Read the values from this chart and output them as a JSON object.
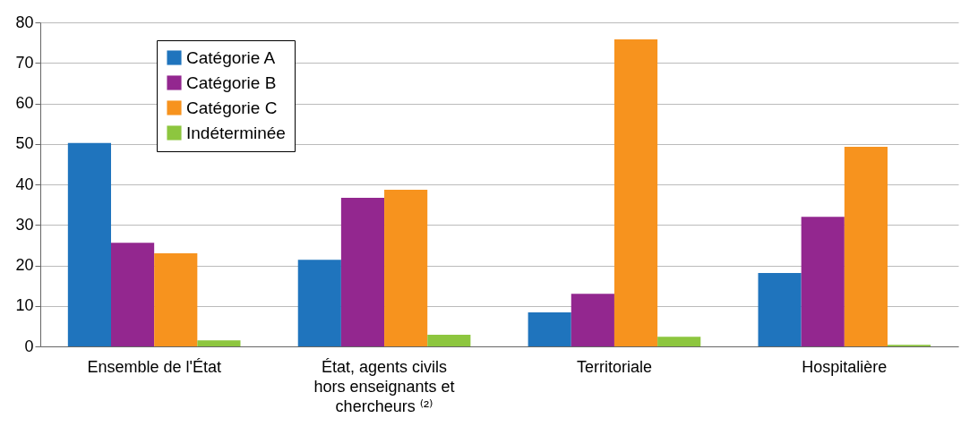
{
  "chart_data": {
    "type": "bar",
    "categories": [
      "Ensemble de l'État",
      "État, agents civils hors enseignants et chercheurs ⁽²⁾",
      "Territoriale",
      "Hospitalière"
    ],
    "series": [
      {
        "name": "Catégorie A",
        "color": "#1f74bd",
        "values": [
          50.2,
          21.4,
          8.4,
          18.1
        ]
      },
      {
        "name": "Catégorie B",
        "color": "#93278f",
        "values": [
          25.6,
          36.7,
          13.0,
          32.0
        ]
      },
      {
        "name": "Catégorie C",
        "color": "#f7931e",
        "values": [
          23.0,
          38.7,
          75.8,
          49.3
        ]
      },
      {
        "name": "Indéterminée",
        "color": "#8dc63f",
        "values": [
          1.5,
          2.9,
          2.4,
          0.4
        ]
      }
    ],
    "ylim": [
      0,
      80
    ],
    "yticks": [
      0,
      10,
      20,
      30,
      40,
      50,
      60,
      70,
      80
    ],
    "grid": "y",
    "legend": "top left"
  }
}
